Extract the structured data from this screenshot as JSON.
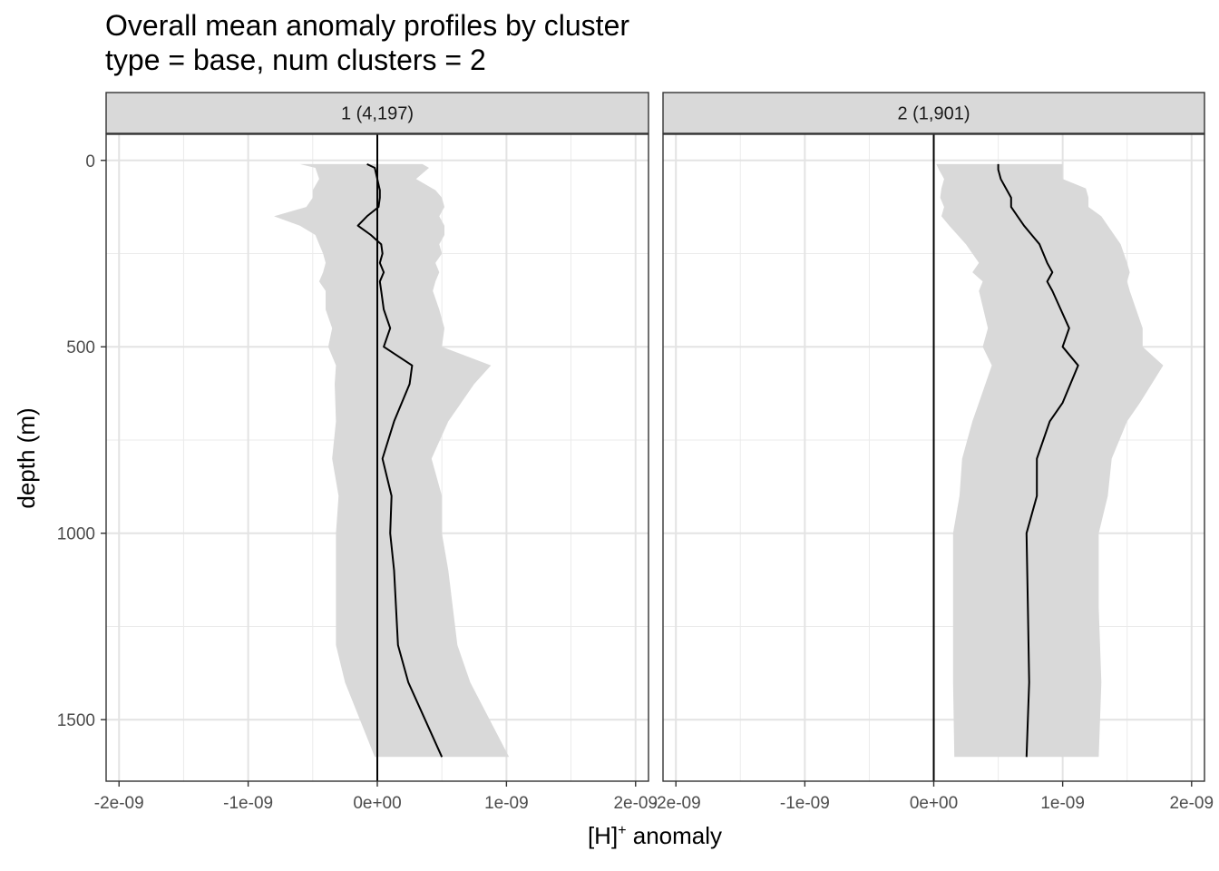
{
  "title": "Overall mean anomaly profiles by cluster",
  "subtitle": "type = base, num clusters = 2",
  "chart_data": {
    "type": "line",
    "xlabel_main": "[H]",
    "xlabel_sup": "+",
    "xlabel_rest": " anomaly",
    "ylabel": "depth (m)",
    "xlim": [
      -2.1e-09,
      2.1e-09
    ],
    "ylim": [
      1665,
      -70
    ],
    "y_reversed": true,
    "x_ticks": [
      -2e-09,
      -1e-09,
      0,
      1e-09,
      2e-09
    ],
    "x_tick_labels": [
      "-2e-09",
      "-1e-09",
      "0e+00",
      "1e-09",
      "2e-09"
    ],
    "y_ticks": [
      0,
      500,
      1000,
      1500
    ],
    "y_tick_labels": [
      "0",
      "500",
      "1000",
      "1500"
    ],
    "reference_line_x": 0,
    "grid": true,
    "ribbon_color": "#d9d9d9",
    "line_color": "#000000",
    "panels": [
      {
        "label": "1 (4,197)",
        "series": [
          {
            "depth": 10,
            "mean": -8e-11,
            "lower": -6e-10,
            "upper": 3.5e-10
          },
          {
            "depth": 20,
            "mean": -2e-11,
            "lower": -4.8e-10,
            "upper": 4e-10
          },
          {
            "depth": 50,
            "mean": 0.0,
            "lower": -4.5e-10,
            "upper": 3e-10
          },
          {
            "depth": 80,
            "mean": 2e-11,
            "lower": -5e-10,
            "upper": 4.5e-10
          },
          {
            "depth": 100,
            "mean": 2e-11,
            "lower": -5e-10,
            "upper": 5e-10
          },
          {
            "depth": 125,
            "mean": 1e-11,
            "lower": -5.5e-10,
            "upper": 5.2e-10
          },
          {
            "depth": 150,
            "mean": -8e-11,
            "lower": -8e-10,
            "upper": 4.8e-10
          },
          {
            "depth": 175,
            "mean": -1.5e-10,
            "lower": -6e-10,
            "upper": 5.2e-10
          },
          {
            "depth": 200,
            "mean": -5e-11,
            "lower": -4.8e-10,
            "upper": 5.2e-10
          },
          {
            "depth": 225,
            "mean": 3e-11,
            "lower": -4.5e-10,
            "upper": 4.8e-10
          },
          {
            "depth": 250,
            "mean": 4e-11,
            "lower": -4.2e-10,
            "upper": 5e-10
          },
          {
            "depth": 275,
            "mean": 2e-11,
            "lower": -4e-10,
            "upper": 4.5e-10
          },
          {
            "depth": 300,
            "mean": 5e-11,
            "lower": -4.2e-10,
            "upper": 4.8e-10
          },
          {
            "depth": 325,
            "mean": 2e-11,
            "lower": -4.5e-10,
            "upper": 4.5e-10
          },
          {
            "depth": 350,
            "mean": 3e-11,
            "lower": -4e-10,
            "upper": 4.3e-10
          },
          {
            "depth": 400,
            "mean": 5e-11,
            "lower": -4e-10,
            "upper": 4.8e-10
          },
          {
            "depth": 450,
            "mean": 1e-10,
            "lower": -3.5e-10,
            "upper": 5.2e-10
          },
          {
            "depth": 500,
            "mean": 5e-11,
            "lower": -3.8e-10,
            "upper": 5e-10
          },
          {
            "depth": 550,
            "mean": 2.7e-10,
            "lower": -3.2e-10,
            "upper": 8.8e-10
          },
          {
            "depth": 600,
            "mean": 2.5e-10,
            "lower": -3.3e-10,
            "upper": 7.5e-10
          },
          {
            "depth": 700,
            "mean": 1.3e-10,
            "lower": -3.2e-10,
            "upper": 5.5e-10
          },
          {
            "depth": 800,
            "mean": 4e-11,
            "lower": -3.5e-10,
            "upper": 4.2e-10
          },
          {
            "depth": 900,
            "mean": 1.1e-10,
            "lower": -3e-10,
            "upper": 5e-10
          },
          {
            "depth": 1000,
            "mean": 1e-10,
            "lower": -3.2e-10,
            "upper": 5e-10
          },
          {
            "depth": 1100,
            "mean": 1.3e-10,
            "lower": -3.2e-10,
            "upper": 5.5e-10
          },
          {
            "depth": 1300,
            "mean": 1.6e-10,
            "lower": -3.2e-10,
            "upper": 6.2e-10
          },
          {
            "depth": 1400,
            "mean": 2.4e-10,
            "lower": -2.5e-10,
            "upper": 7.2e-10
          },
          {
            "depth": 1600,
            "mean": 5e-10,
            "lower": -2e-11,
            "upper": 1.02e-09
          }
        ]
      },
      {
        "label": "2 (1,901)",
        "series": [
          {
            "depth": 10,
            "mean": 5e-10,
            "lower": 2e-11,
            "upper": 1e-09
          },
          {
            "depth": 25,
            "mean": 5e-10,
            "lower": 4e-11,
            "upper": 1e-09
          },
          {
            "depth": 50,
            "mean": 5.2e-10,
            "lower": 8e-11,
            "upper": 1e-09
          },
          {
            "depth": 75,
            "mean": 5.6e-10,
            "lower": 6e-11,
            "upper": 1.18e-09
          },
          {
            "depth": 100,
            "mean": 6e-10,
            "lower": 5e-11,
            "upper": 1.2e-09
          },
          {
            "depth": 125,
            "mean": 6e-10,
            "lower": 8e-11,
            "upper": 1.2e-09
          },
          {
            "depth": 150,
            "mean": 6.5e-10,
            "lower": 6e-11,
            "upper": 1.3e-09
          },
          {
            "depth": 175,
            "mean": 7e-10,
            "lower": 1.2e-10,
            "upper": 1.35e-09
          },
          {
            "depth": 225,
            "mean": 8.2e-10,
            "lower": 2.5e-10,
            "upper": 1.45e-09
          },
          {
            "depth": 275,
            "mean": 8.8e-10,
            "lower": 3.5e-10,
            "upper": 1.5e-09
          },
          {
            "depth": 300,
            "mean": 9.2e-10,
            "lower": 3e-10,
            "upper": 1.52e-09
          },
          {
            "depth": 325,
            "mean": 8.8e-10,
            "lower": 3.8e-10,
            "upper": 1.5e-09
          },
          {
            "depth": 350,
            "mean": 9.2e-10,
            "lower": 3.5e-10,
            "upper": 1.52e-09
          },
          {
            "depth": 450,
            "mean": 1.05e-09,
            "lower": 4.2e-10,
            "upper": 1.62e-09
          },
          {
            "depth": 500,
            "mean": 1e-09,
            "lower": 3.8e-10,
            "upper": 1.62e-09
          },
          {
            "depth": 550,
            "mean": 1.12e-09,
            "lower": 4.5e-10,
            "upper": 1.78e-09
          },
          {
            "depth": 650,
            "mean": 1e-09,
            "lower": 3.5e-10,
            "upper": 1.6e-09
          },
          {
            "depth": 700,
            "mean": 9e-10,
            "lower": 3e-10,
            "upper": 1.5e-09
          },
          {
            "depth": 800,
            "mean": 8e-10,
            "lower": 2.2e-10,
            "upper": 1.38e-09
          },
          {
            "depth": 900,
            "mean": 8e-10,
            "lower": 2e-10,
            "upper": 1.35e-09
          },
          {
            "depth": 1000,
            "mean": 7.2e-10,
            "lower": 1.5e-10,
            "upper": 1.28e-09
          },
          {
            "depth": 1200,
            "mean": 7.3e-10,
            "lower": 1.5e-10,
            "upper": 1.28e-09
          },
          {
            "depth": 1400,
            "mean": 7.4e-10,
            "lower": 1.5e-10,
            "upper": 1.3e-09
          },
          {
            "depth": 1600,
            "mean": 7.2e-10,
            "lower": 1.6e-10,
            "upper": 1.28e-09
          }
        ]
      }
    ]
  }
}
